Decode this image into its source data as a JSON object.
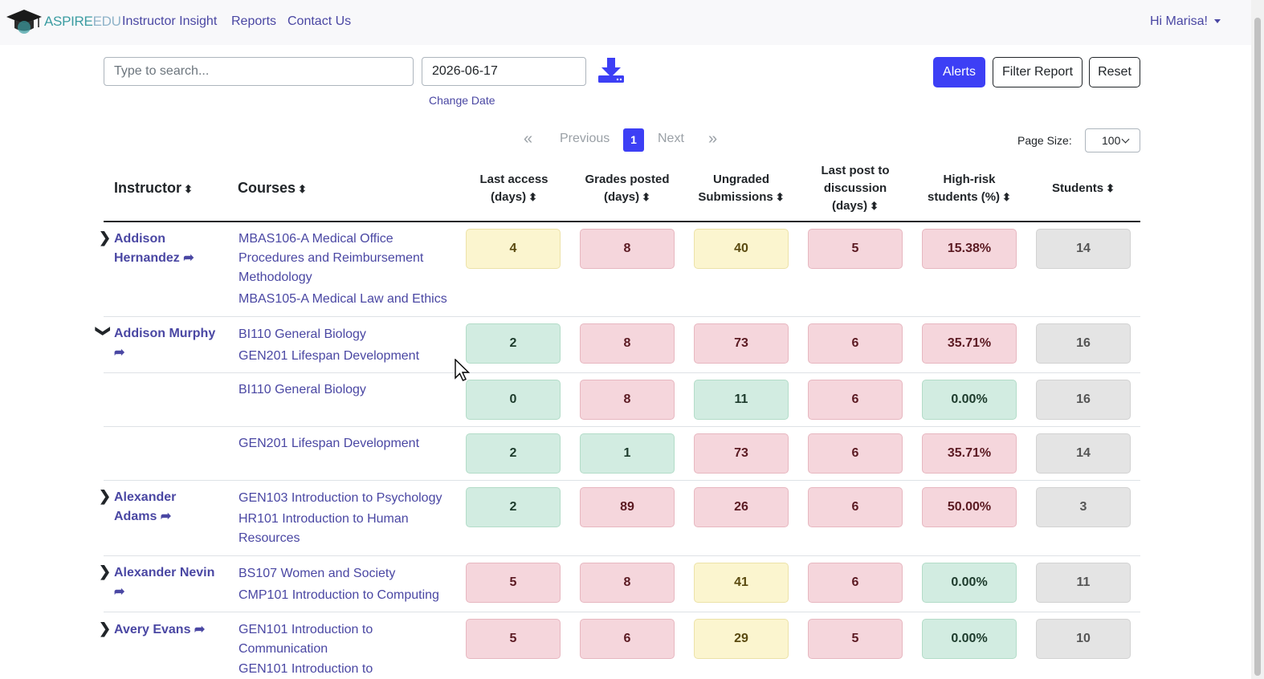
{
  "nav": {
    "logo_part1": "ASPIRE",
    "logo_part2": "EDU",
    "links": [
      "Instructor Insight",
      "Reports",
      "Contact Us"
    ],
    "user_greeting": "Hi Marisa!"
  },
  "toolbar": {
    "search_placeholder": "Type to search...",
    "date_value": "2026-06-17",
    "change_date_label": "Change Date",
    "download_icon": "download-icon",
    "alerts_label": "Alerts",
    "filter_label": "Filter Report",
    "reset_label": "Reset"
  },
  "pagination": {
    "first": "«",
    "previous": "Previous",
    "current": "1",
    "next": "Next",
    "last": "»",
    "page_size_label": "Page Size:",
    "page_size_value": "100"
  },
  "table": {
    "headers": {
      "instructor": "Instructor",
      "courses": "Courses",
      "last_access": [
        "Last access",
        "(days)"
      ],
      "grades_posted": [
        "Grades posted",
        "(days)"
      ],
      "ungraded": [
        "Ungraded",
        "Submissions"
      ],
      "last_post": [
        "Last post to",
        "discussion",
        "(days)"
      ],
      "high_risk": [
        "High-risk",
        "students (%)"
      ],
      "students": "Students"
    },
    "rows": [
      {
        "toggle": "›",
        "instructor": [
          "Addison",
          "Hernandez"
        ],
        "courses": [
          "MBAS106-A Medical Office",
          "Procedures and Reimbursement",
          "Methodology",
          "MBAS105-A Medical Law and Ethics"
        ],
        "values": [
          "4",
          "8",
          "40",
          "5",
          "15.38%",
          "14"
        ],
        "colors": [
          "yellow",
          "red",
          "yellow",
          "red",
          "red",
          "gray"
        ]
      },
      {
        "toggle": "⌄",
        "instructor": [
          "Addison Murphy",
          ""
        ],
        "courses": [
          "BI110 General Biology",
          "GEN201 Lifespan Development"
        ],
        "values": [
          "2",
          "8",
          "73",
          "6",
          "35.71%",
          "16"
        ],
        "colors": [
          "green",
          "red",
          "red",
          "red",
          "red",
          "gray"
        ]
      },
      {
        "courses": [
          "BI110 General Biology"
        ],
        "values": [
          "0",
          "8",
          "11",
          "6",
          "0.00%",
          "16"
        ],
        "colors": [
          "green",
          "red",
          "green",
          "red",
          "green",
          "gray"
        ]
      },
      {
        "courses": [
          "GEN201 Lifespan Development"
        ],
        "values": [
          "2",
          "1",
          "73",
          "6",
          "35.71%",
          "14"
        ],
        "colors": [
          "green",
          "green",
          "red",
          "red",
          "red",
          "gray"
        ]
      },
      {
        "toggle": "›",
        "instructor": [
          "Alexander",
          "Adams"
        ],
        "courses": [
          "GEN103 Introduction to Psychology",
          "HR101 Introduction to Human",
          "Resources"
        ],
        "values": [
          "2",
          "89",
          "26",
          "6",
          "50.00%",
          "3"
        ],
        "colors": [
          "green",
          "red",
          "red",
          "red",
          "red",
          "gray"
        ]
      },
      {
        "toggle": "›",
        "instructor": [
          "Alexander Nevin",
          ""
        ],
        "courses": [
          "BS107 Women and Society",
          "CMP101 Introduction to Computing"
        ],
        "values": [
          "5",
          "8",
          "41",
          "6",
          "0.00%",
          "11"
        ],
        "colors": [
          "red",
          "red",
          "yellow",
          "red",
          "green",
          "gray"
        ]
      },
      {
        "toggle": "›",
        "instructor": [
          "Avery Evans",
          ""
        ],
        "courses": [
          "GEN101 Introduction to",
          "Communication",
          "GEN101 Introduction to"
        ],
        "values": [
          "5",
          "6",
          "29",
          "5",
          "0.00%",
          "10"
        ],
        "colors": [
          "red",
          "red",
          "yellow",
          "red",
          "green",
          "gray"
        ]
      }
    ]
  }
}
